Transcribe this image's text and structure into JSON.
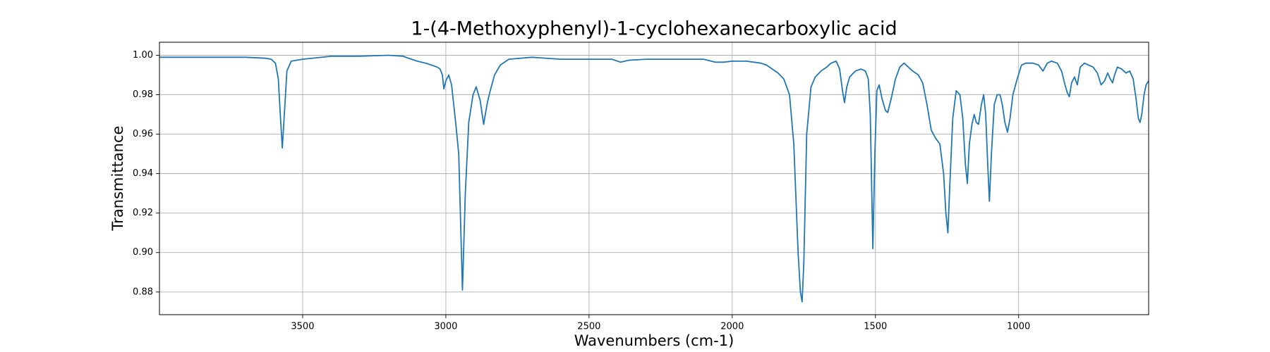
{
  "chart_data": {
    "type": "line",
    "title": "1-(4-Methoxyphenyl)-1-cyclohexanecarboxylic acid",
    "x_label": "Wavenumbers (cm-1)",
    "y_label": "Transmittance",
    "color": "#1f77b4",
    "grid": true,
    "xlim": [
      4000,
      546
    ],
    "ylim": [
      0.8685,
      1.0066
    ],
    "xticks": [
      3500,
      3000,
      2500,
      2000,
      1500,
      1000
    ],
    "yticks": [
      0.88,
      {
        "value": 0.9,
        "label": "0.90"
      },
      0.92,
      0.94,
      0.96,
      0.98,
      {
        "value": 1.0,
        "label": "1.00"
      }
    ],
    "x": [
      4000,
      3900,
      3800,
      3700,
      3630,
      3610,
      3595,
      3585,
      3578,
      3571,
      3564,
      3555,
      3540,
      3500,
      3400,
      3300,
      3200,
      3150,
      3120,
      3100,
      3070,
      3050,
      3030,
      3020,
      3012,
      3007,
      3000,
      2990,
      2980,
      2965,
      2955,
      2942,
      2932,
      2920,
      2905,
      2894,
      2880,
      2868,
      2855,
      2845,
      2830,
      2810,
      2780,
      2700,
      2600,
      2500,
      2420,
      2390,
      2360,
      2300,
      2200,
      2100,
      2060,
      2030,
      2000,
      1950,
      1900,
      1880,
      1860,
      1840,
      1820,
      1800,
      1785,
      1770,
      1762,
      1756,
      1750,
      1740,
      1725,
      1710,
      1690,
      1670,
      1655,
      1637,
      1625,
      1615,
      1608,
      1600,
      1590,
      1570,
      1550,
      1535,
      1525,
      1518,
      1509,
      1502,
      1495,
      1487,
      1477,
      1465,
      1457,
      1445,
      1430,
      1415,
      1400,
      1385,
      1370,
      1350,
      1335,
      1320,
      1305,
      1290,
      1275,
      1262,
      1254,
      1247,
      1240,
      1230,
      1218,
      1205,
      1195,
      1186,
      1179,
      1172,
      1163,
      1155,
      1148,
      1140,
      1130,
      1122,
      1115,
      1108,
      1102,
      1095,
      1085,
      1075,
      1065,
      1057,
      1048,
      1039,
      1030,
      1020,
      1005,
      990,
      975,
      950,
      930,
      915,
      900,
      885,
      865,
      850,
      838,
      830,
      823,
      815,
      805,
      795,
      785,
      770,
      755,
      740,
      725,
      712,
      700,
      689,
      680,
      672,
      665,
      655,
      640,
      625,
      612,
      600,
      590,
      582,
      576,
      570,
      562,
      555,
      546
    ],
    "values": [
      0.999,
      0.999,
      0.999,
      0.999,
      0.9985,
      0.998,
      0.996,
      0.988,
      0.97,
      0.953,
      0.97,
      0.992,
      0.997,
      0.998,
      0.9995,
      0.9995,
      1.0,
      0.9995,
      0.998,
      0.997,
      0.996,
      0.995,
      0.994,
      0.993,
      0.99,
      0.983,
      0.987,
      0.99,
      0.985,
      0.965,
      0.95,
      0.881,
      0.93,
      0.966,
      0.98,
      0.984,
      0.977,
      0.965,
      0.976,
      0.982,
      0.99,
      0.995,
      0.998,
      0.999,
      0.998,
      0.998,
      0.998,
      0.9965,
      0.9975,
      0.998,
      0.998,
      0.998,
      0.9965,
      0.9965,
      0.997,
      0.997,
      0.996,
      0.995,
      0.993,
      0.991,
      0.988,
      0.98,
      0.955,
      0.9,
      0.88,
      0.875,
      0.895,
      0.96,
      0.984,
      0.989,
      0.992,
      0.994,
      0.996,
      0.997,
      0.993,
      0.982,
      0.976,
      0.984,
      0.989,
      0.992,
      0.993,
      0.992,
      0.988,
      0.97,
      0.902,
      0.95,
      0.982,
      0.985,
      0.978,
      0.972,
      0.971,
      0.978,
      0.988,
      0.994,
      0.996,
      0.994,
      0.992,
      0.99,
      0.986,
      0.975,
      0.962,
      0.958,
      0.955,
      0.94,
      0.92,
      0.91,
      0.935,
      0.968,
      0.982,
      0.98,
      0.968,
      0.945,
      0.935,
      0.955,
      0.965,
      0.97,
      0.966,
      0.965,
      0.975,
      0.98,
      0.97,
      0.945,
      0.926,
      0.95,
      0.975,
      0.98,
      0.98,
      0.975,
      0.966,
      0.961,
      0.968,
      0.98,
      0.988,
      0.995,
      0.996,
      0.996,
      0.995,
      0.992,
      0.996,
      0.997,
      0.996,
      0.992,
      0.985,
      0.981,
      0.979,
      0.986,
      0.989,
      0.985,
      0.994,
      0.996,
      0.995,
      0.994,
      0.991,
      0.985,
      0.987,
      0.991,
      0.988,
      0.986,
      0.99,
      0.994,
      0.993,
      0.991,
      0.992,
      0.988,
      0.978,
      0.968,
      0.966,
      0.97,
      0.98,
      0.985,
      0.987
    ]
  }
}
